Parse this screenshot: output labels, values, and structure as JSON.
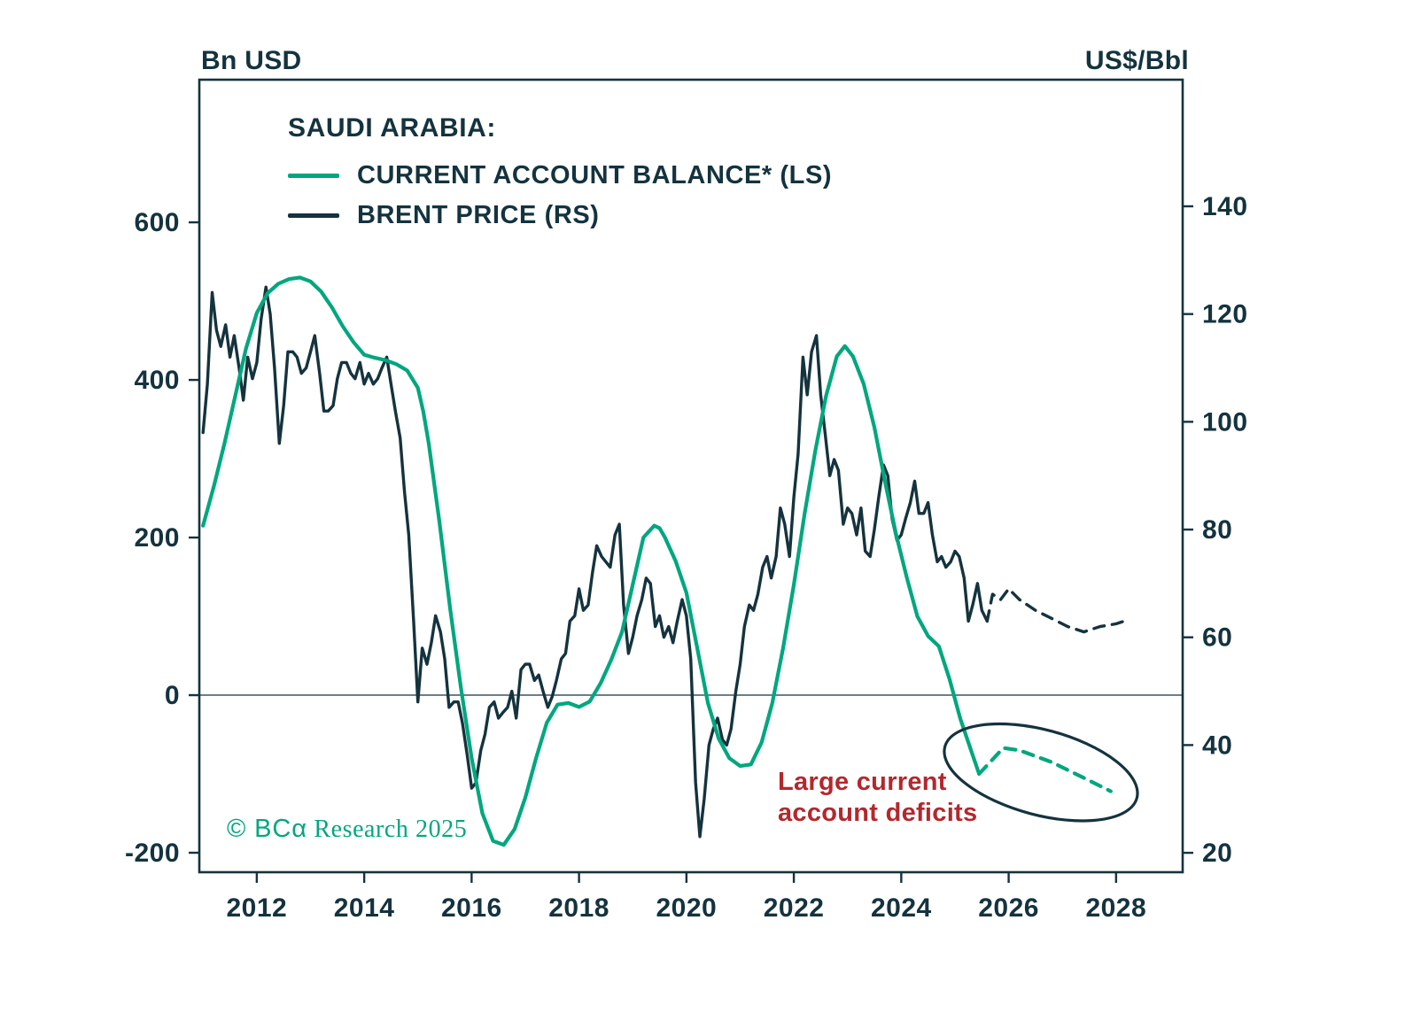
{
  "header": {
    "left_axis_unit": "Bn USD",
    "right_axis_unit": "US$/Bbl"
  },
  "legend": {
    "title": "SAUDI ARABIA:",
    "items": [
      {
        "label": "CURRENT ACCOUNT BALANCE* (LS)",
        "color": "#00a77e"
      },
      {
        "label": "BRENT PRICE (RS)",
        "color": "#14333e"
      }
    ]
  },
  "annotation": {
    "line1": "Large current",
    "line2": "account deficits",
    "color": "#b3282d"
  },
  "copyright": {
    "logo": "© BCα",
    "rest": " Research 2025",
    "color": "#00a77e"
  },
  "chart_data": {
    "type": "line",
    "title": "SAUDI ARABIA: CURRENT ACCOUNT BALANCE* (LS) AND BRENT PRICE (RS)",
    "axis_color": "#14333e",
    "background": "#ffffff",
    "x_axis": {
      "ticks": [
        2012,
        2014,
        2016,
        2018,
        2020,
        2022,
        2024,
        2026,
        2028
      ],
      "range": [
        2010.93,
        2029.24
      ]
    },
    "y_left": {
      "label": "Bn USD",
      "ticks": [
        -200,
        0,
        200,
        400,
        600
      ],
      "range": [
        -224.7,
        781.0
      ]
    },
    "y_right": {
      "label": "US$/Bbl",
      "ticks": [
        20,
        40,
        60,
        80,
        100,
        120,
        140
      ],
      "range": [
        16.4,
        163.5
      ]
    },
    "zero_line_left_value": 0,
    "series": [
      {
        "name": "BRENT PRICE (RS)",
        "axis": "right",
        "color": "#14333e",
        "width": 3.4,
        "solid": [
          [
            2011.0,
            98
          ],
          [
            2011.08,
            107
          ],
          [
            2011.17,
            124
          ],
          [
            2011.25,
            117
          ],
          [
            2011.33,
            114
          ],
          [
            2011.42,
            118
          ],
          [
            2011.5,
            112
          ],
          [
            2011.58,
            116
          ],
          [
            2011.67,
            110
          ],
          [
            2011.75,
            104
          ],
          [
            2011.83,
            112
          ],
          [
            2011.92,
            108
          ],
          [
            2012.0,
            111
          ],
          [
            2012.08,
            119
          ],
          [
            2012.17,
            125
          ],
          [
            2012.25,
            120
          ],
          [
            2012.33,
            110
          ],
          [
            2012.42,
            96
          ],
          [
            2012.5,
            103
          ],
          [
            2012.58,
            113
          ],
          [
            2012.67,
            113
          ],
          [
            2012.75,
            112
          ],
          [
            2012.83,
            109
          ],
          [
            2012.92,
            110
          ],
          [
            2013.0,
            113
          ],
          [
            2013.08,
            116
          ],
          [
            2013.17,
            109
          ],
          [
            2013.25,
            102
          ],
          [
            2013.33,
            102
          ],
          [
            2013.42,
            103
          ],
          [
            2013.5,
            108
          ],
          [
            2013.58,
            111
          ],
          [
            2013.67,
            111
          ],
          [
            2013.75,
            109
          ],
          [
            2013.83,
            108
          ],
          [
            2013.92,
            111
          ],
          [
            2014.0,
            107
          ],
          [
            2014.08,
            109
          ],
          [
            2014.17,
            107
          ],
          [
            2014.25,
            108
          ],
          [
            2014.33,
            110
          ],
          [
            2014.42,
            112
          ],
          [
            2014.5,
            107
          ],
          [
            2014.58,
            102
          ],
          [
            2014.67,
            97
          ],
          [
            2014.75,
            87
          ],
          [
            2014.83,
            79
          ],
          [
            2014.92,
            63
          ],
          [
            2015.0,
            48
          ],
          [
            2015.08,
            58
          ],
          [
            2015.17,
            55
          ],
          [
            2015.25,
            59
          ],
          [
            2015.33,
            64
          ],
          [
            2015.42,
            61
          ],
          [
            2015.5,
            56
          ],
          [
            2015.58,
            47
          ],
          [
            2015.67,
            48
          ],
          [
            2015.75,
            48
          ],
          [
            2015.83,
            44
          ],
          [
            2015.92,
            38
          ],
          [
            2016.0,
            32
          ],
          [
            2016.08,
            33
          ],
          [
            2016.17,
            39
          ],
          [
            2016.25,
            42
          ],
          [
            2016.33,
            47
          ],
          [
            2016.42,
            48
          ],
          [
            2016.5,
            45
          ],
          [
            2016.58,
            46
          ],
          [
            2016.67,
            47
          ],
          [
            2016.75,
            50
          ],
          [
            2016.83,
            45
          ],
          [
            2016.92,
            54
          ],
          [
            2017.0,
            55
          ],
          [
            2017.08,
            55
          ],
          [
            2017.17,
            52
          ],
          [
            2017.25,
            53
          ],
          [
            2017.33,
            50
          ],
          [
            2017.42,
            47
          ],
          [
            2017.5,
            49
          ],
          [
            2017.58,
            52
          ],
          [
            2017.67,
            56
          ],
          [
            2017.75,
            57
          ],
          [
            2017.83,
            63
          ],
          [
            2017.92,
            64
          ],
          [
            2018.0,
            69
          ],
          [
            2018.08,
            65
          ],
          [
            2018.17,
            66
          ],
          [
            2018.25,
            72
          ],
          [
            2018.33,
            77
          ],
          [
            2018.42,
            75
          ],
          [
            2018.5,
            74
          ],
          [
            2018.58,
            73
          ],
          [
            2018.67,
            79
          ],
          [
            2018.75,
            81
          ],
          [
            2018.83,
            66
          ],
          [
            2018.92,
            57
          ],
          [
            2019.0,
            60
          ],
          [
            2019.08,
            64
          ],
          [
            2019.17,
            67
          ],
          [
            2019.25,
            71
          ],
          [
            2019.33,
            70
          ],
          [
            2019.42,
            62
          ],
          [
            2019.5,
            64
          ],
          [
            2019.58,
            60
          ],
          [
            2019.67,
            62
          ],
          [
            2019.75,
            59
          ],
          [
            2019.83,
            63
          ],
          [
            2019.92,
            67
          ],
          [
            2020.0,
            64
          ],
          [
            2020.08,
            56
          ],
          [
            2020.17,
            33
          ],
          [
            2020.25,
            23
          ],
          [
            2020.33,
            30
          ],
          [
            2020.42,
            40
          ],
          [
            2020.5,
            43
          ],
          [
            2020.58,
            45
          ],
          [
            2020.67,
            41
          ],
          [
            2020.75,
            40
          ],
          [
            2020.83,
            43
          ],
          [
            2020.92,
            50
          ],
          [
            2021.0,
            55
          ],
          [
            2021.08,
            62
          ],
          [
            2021.17,
            66
          ],
          [
            2021.25,
            65
          ],
          [
            2021.33,
            68
          ],
          [
            2021.42,
            73
          ],
          [
            2021.5,
            75
          ],
          [
            2021.58,
            71
          ],
          [
            2021.67,
            75
          ],
          [
            2021.75,
            84
          ],
          [
            2021.83,
            81
          ],
          [
            2021.92,
            75
          ],
          [
            2022.0,
            86
          ],
          [
            2022.08,
            94
          ],
          [
            2022.17,
            112
          ],
          [
            2022.25,
            105
          ],
          [
            2022.33,
            113
          ],
          [
            2022.42,
            116
          ],
          [
            2022.5,
            105
          ],
          [
            2022.58,
            98
          ],
          [
            2022.67,
            90
          ],
          [
            2022.75,
            93
          ],
          [
            2022.83,
            91
          ],
          [
            2022.92,
            81
          ],
          [
            2023.0,
            84
          ],
          [
            2023.08,
            83
          ],
          [
            2023.17,
            79
          ],
          [
            2023.25,
            84
          ],
          [
            2023.33,
            76
          ],
          [
            2023.42,
            75
          ],
          [
            2023.5,
            80
          ],
          [
            2023.58,
            86
          ],
          [
            2023.67,
            92
          ],
          [
            2023.75,
            90
          ],
          [
            2023.83,
            82
          ],
          [
            2023.92,
            78
          ],
          [
            2024.0,
            79
          ],
          [
            2024.08,
            82
          ],
          [
            2024.17,
            85
          ],
          [
            2024.25,
            89
          ],
          [
            2024.33,
            83
          ],
          [
            2024.42,
            83
          ],
          [
            2024.5,
            85
          ],
          [
            2024.58,
            79
          ],
          [
            2024.67,
            74
          ],
          [
            2024.75,
            75
          ],
          [
            2024.83,
            73
          ],
          [
            2024.92,
            74
          ],
          [
            2025.0,
            76
          ],
          [
            2025.08,
            75
          ],
          [
            2025.17,
            71
          ],
          [
            2025.25,
            63
          ],
          [
            2025.33,
            66
          ],
          [
            2025.42,
            70
          ],
          [
            2025.5,
            65
          ],
          [
            2025.6,
            63
          ]
        ],
        "forecast": [
          [
            2025.6,
            63
          ],
          [
            2025.7,
            68
          ],
          [
            2025.85,
            67
          ],
          [
            2026.0,
            69
          ],
          [
            2026.2,
            67
          ],
          [
            2026.5,
            65
          ],
          [
            2026.8,
            63.5
          ],
          [
            2027.1,
            62
          ],
          [
            2027.4,
            61
          ],
          [
            2027.7,
            62
          ],
          [
            2028.0,
            62.5
          ],
          [
            2028.15,
            63
          ]
        ]
      },
      {
        "name": "CURRENT ACCOUNT BALANCE* (LS)",
        "axis": "left",
        "color": "#00a77e",
        "width": 4.2,
        "solid": [
          [
            2011.0,
            215
          ],
          [
            2011.2,
            265
          ],
          [
            2011.4,
            320
          ],
          [
            2011.6,
            380
          ],
          [
            2011.8,
            440
          ],
          [
            2012.0,
            485
          ],
          [
            2012.2,
            510
          ],
          [
            2012.4,
            522
          ],
          [
            2012.6,
            528
          ],
          [
            2012.8,
            530
          ],
          [
            2013.0,
            525
          ],
          [
            2013.2,
            512
          ],
          [
            2013.4,
            492
          ],
          [
            2013.6,
            468
          ],
          [
            2013.8,
            448
          ],
          [
            2014.0,
            432
          ],
          [
            2014.2,
            428
          ],
          [
            2014.4,
            425
          ],
          [
            2014.6,
            420
          ],
          [
            2014.8,
            412
          ],
          [
            2015.0,
            390
          ],
          [
            2015.1,
            360
          ],
          [
            2015.2,
            320
          ],
          [
            2015.4,
            220
          ],
          [
            2015.6,
            110
          ],
          [
            2015.8,
            10
          ],
          [
            2016.0,
            -80
          ],
          [
            2016.2,
            -150
          ],
          [
            2016.4,
            -185
          ],
          [
            2016.6,
            -190
          ],
          [
            2016.8,
            -170
          ],
          [
            2017.0,
            -130
          ],
          [
            2017.2,
            -80
          ],
          [
            2017.4,
            -35
          ],
          [
            2017.6,
            -12
          ],
          [
            2017.8,
            -10
          ],
          [
            2018.0,
            -15
          ],
          [
            2018.2,
            -8
          ],
          [
            2018.4,
            15
          ],
          [
            2018.6,
            45
          ],
          [
            2018.8,
            80
          ],
          [
            2019.0,
            140
          ],
          [
            2019.2,
            200
          ],
          [
            2019.4,
            215
          ],
          [
            2019.5,
            212
          ],
          [
            2019.6,
            200
          ],
          [
            2019.8,
            170
          ],
          [
            2020.0,
            130
          ],
          [
            2020.2,
            60
          ],
          [
            2020.4,
            -10
          ],
          [
            2020.6,
            -55
          ],
          [
            2020.8,
            -80
          ],
          [
            2021.0,
            -90
          ],
          [
            2021.2,
            -88
          ],
          [
            2021.4,
            -60
          ],
          [
            2021.6,
            -10
          ],
          [
            2021.8,
            60
          ],
          [
            2022.0,
            140
          ],
          [
            2022.2,
            230
          ],
          [
            2022.4,
            310
          ],
          [
            2022.6,
            380
          ],
          [
            2022.8,
            430
          ],
          [
            2022.95,
            443
          ],
          [
            2023.1,
            430
          ],
          [
            2023.3,
            395
          ],
          [
            2023.5,
            340
          ],
          [
            2023.7,
            270
          ],
          [
            2023.9,
            205
          ],
          [
            2024.1,
            150
          ],
          [
            2024.3,
            100
          ],
          [
            2024.5,
            75
          ],
          [
            2024.7,
            62
          ],
          [
            2024.9,
            20
          ],
          [
            2025.1,
            -30
          ],
          [
            2025.3,
            -70
          ],
          [
            2025.45,
            -100
          ]
        ],
        "forecast": [
          [
            2025.45,
            -100
          ],
          [
            2025.9,
            -67
          ],
          [
            2026.2,
            -70
          ],
          [
            2026.8,
            -85
          ],
          [
            2027.4,
            -105
          ],
          [
            2027.9,
            -122
          ]
        ]
      }
    ],
    "ellipse_annotation": {
      "cx_year": 2026.6,
      "cy_left_value": -98,
      "rx_years": 1.85,
      "ry_left_values": 54,
      "rotation_deg": 15,
      "color": "#14333e",
      "stroke_width": 3.2
    },
    "grid": false,
    "legend_position": "top-left"
  }
}
